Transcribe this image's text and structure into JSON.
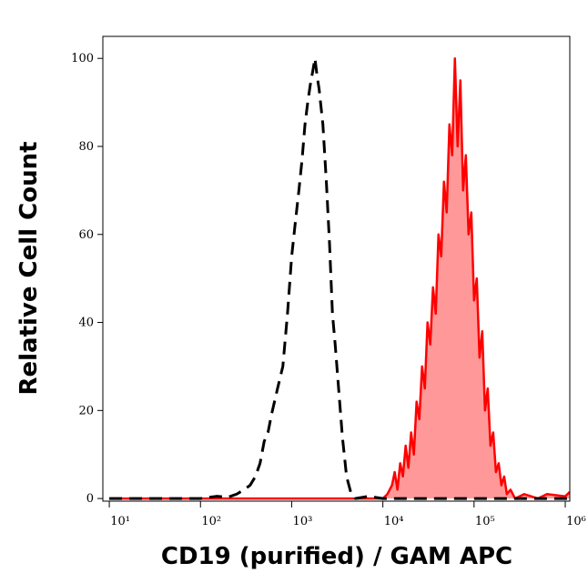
{
  "chart_data": {
    "type": "histogram-overlay",
    "xlabel": "CD19 (purified) / GAM APC",
    "ylabel": "Relative Cell Count",
    "xscale": "log",
    "xlim": [
      8.5,
      1122018
    ],
    "ylim": [
      -0.6,
      105
    ],
    "xticks": [
      {
        "value": 10,
        "label": "10¹"
      },
      {
        "value": 100,
        "label": "10²"
      },
      {
        "value": 1000,
        "label": "10³"
      },
      {
        "value": 10000,
        "label": "10⁴"
      },
      {
        "value": 100000,
        "label": "10⁵"
      },
      {
        "value": 1000000,
        "label": "10⁶"
      }
    ],
    "yticks": [
      0,
      20,
      40,
      60,
      80,
      100
    ],
    "series": [
      {
        "color": "#000000",
        "dashed": true,
        "x": [
          10,
          100,
          150,
          200,
          250,
          300,
          350,
          400,
          450,
          500,
          550,
          600,
          700,
          800,
          900,
          1000,
          1100,
          1200,
          1300,
          1400,
          1500,
          1600,
          1700,
          1800,
          1900,
          2000,
          2200,
          2400,
          2600,
          2800,
          3000,
          3300,
          3600,
          4000,
          4500,
          5000,
          7000,
          10000,
          1122018
        ],
        "values": [
          0,
          0,
          0.5,
          0.3,
          1,
          2,
          3,
          5,
          8,
          13,
          15,
          19,
          25,
          30,
          42,
          55,
          63,
          70,
          77,
          85,
          90,
          94,
          97,
          100,
          96,
          93,
          85,
          72,
          58,
          42,
          35,
          24,
          14,
          5,
          1,
          0,
          0.5,
          0,
          0
        ]
      },
      {
        "color": "#ff0000",
        "fill": "#ff9999",
        "x": [
          10,
          10000,
          11220,
          12589,
          13490,
          14454,
          15488,
          16596,
          17783,
          19055,
          20417,
          21878,
          23442,
          25119,
          26915,
          28840,
          30903,
          33113,
          35481,
          38019,
          40738,
          43652,
          46774,
          50119,
          53703,
          57544,
          61660,
          66069,
          70795,
          75858,
          81283,
          87096,
          93325,
          100000,
          107152,
          114815,
          123027,
          131826,
          141254,
          151356,
          162181,
          173780,
          186209,
          199526,
          213796,
          229087,
          251189,
          281838,
          354813,
          501187,
          630957,
          1000000,
          1122018
        ],
        "values": [
          0,
          0,
          1,
          3,
          6,
          2,
          8,
          5,
          12,
          7,
          15,
          10,
          22,
          18,
          30,
          25,
          40,
          35,
          48,
          42,
          60,
          55,
          72,
          65,
          85,
          78,
          100,
          80,
          95,
          70,
          78,
          60,
          65,
          45,
          50,
          32,
          38,
          20,
          25,
          12,
          15,
          6,
          8,
          3,
          5,
          1,
          2,
          0,
          1,
          0,
          1,
          0.5,
          1.5
        ]
      }
    ]
  }
}
